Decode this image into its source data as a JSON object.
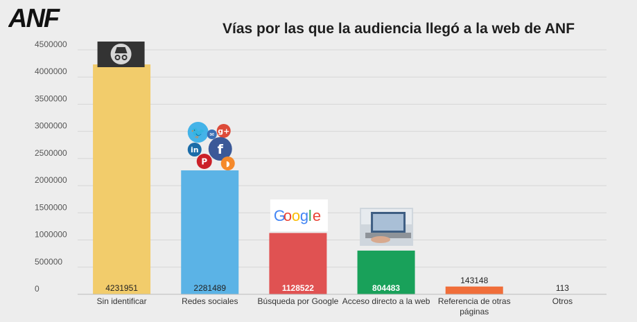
{
  "logo": "ANF",
  "icons": [
    "incognito-icon",
    "social-media-icons",
    "google-logo",
    "laptop-photo",
    "",
    ""
  ],
  "chart_data": {
    "type": "bar",
    "title": "Vías por las que la audiencia llegó a la web de ANF",
    "xlabel": "",
    "ylabel": "",
    "ylim": [
      0,
      4500000
    ],
    "yticks": [
      0,
      500000,
      1000000,
      1500000,
      2000000,
      2500000,
      3000000,
      3500000,
      4000000,
      4500000
    ],
    "ytick_labels": [
      "0",
      "500000",
      "1000000",
      "1500000",
      "2000000",
      "2500000",
      "3000000",
      "3500000",
      "4000000",
      "4500000"
    ],
    "grid": true,
    "legend": "none",
    "categories": [
      [
        "Sin identificar"
      ],
      [
        "Redes sociales"
      ],
      [
        "Búsqueda por Google"
      ],
      [
        "Acceso directo a la web"
      ],
      [
        "Referencia de otras",
        "páginas"
      ],
      [
        "Otros"
      ]
    ],
    "values": [
      4231951,
      2281489,
      1128522,
      804483,
      143148,
      113
    ],
    "data_labels": [
      "4231951",
      "2281489",
      "1128522",
      "804483",
      "143148",
      "113"
    ],
    "colors": [
      "#f2cc6b",
      "#5bb3e6",
      "#e05252",
      "#19a15a",
      "#f06e3a",
      "#9e9e9e"
    ],
    "label_colors": [
      "#222222",
      "#222222",
      "#ffffff",
      "#ffffff",
      "#222222",
      "#222222"
    ]
  }
}
